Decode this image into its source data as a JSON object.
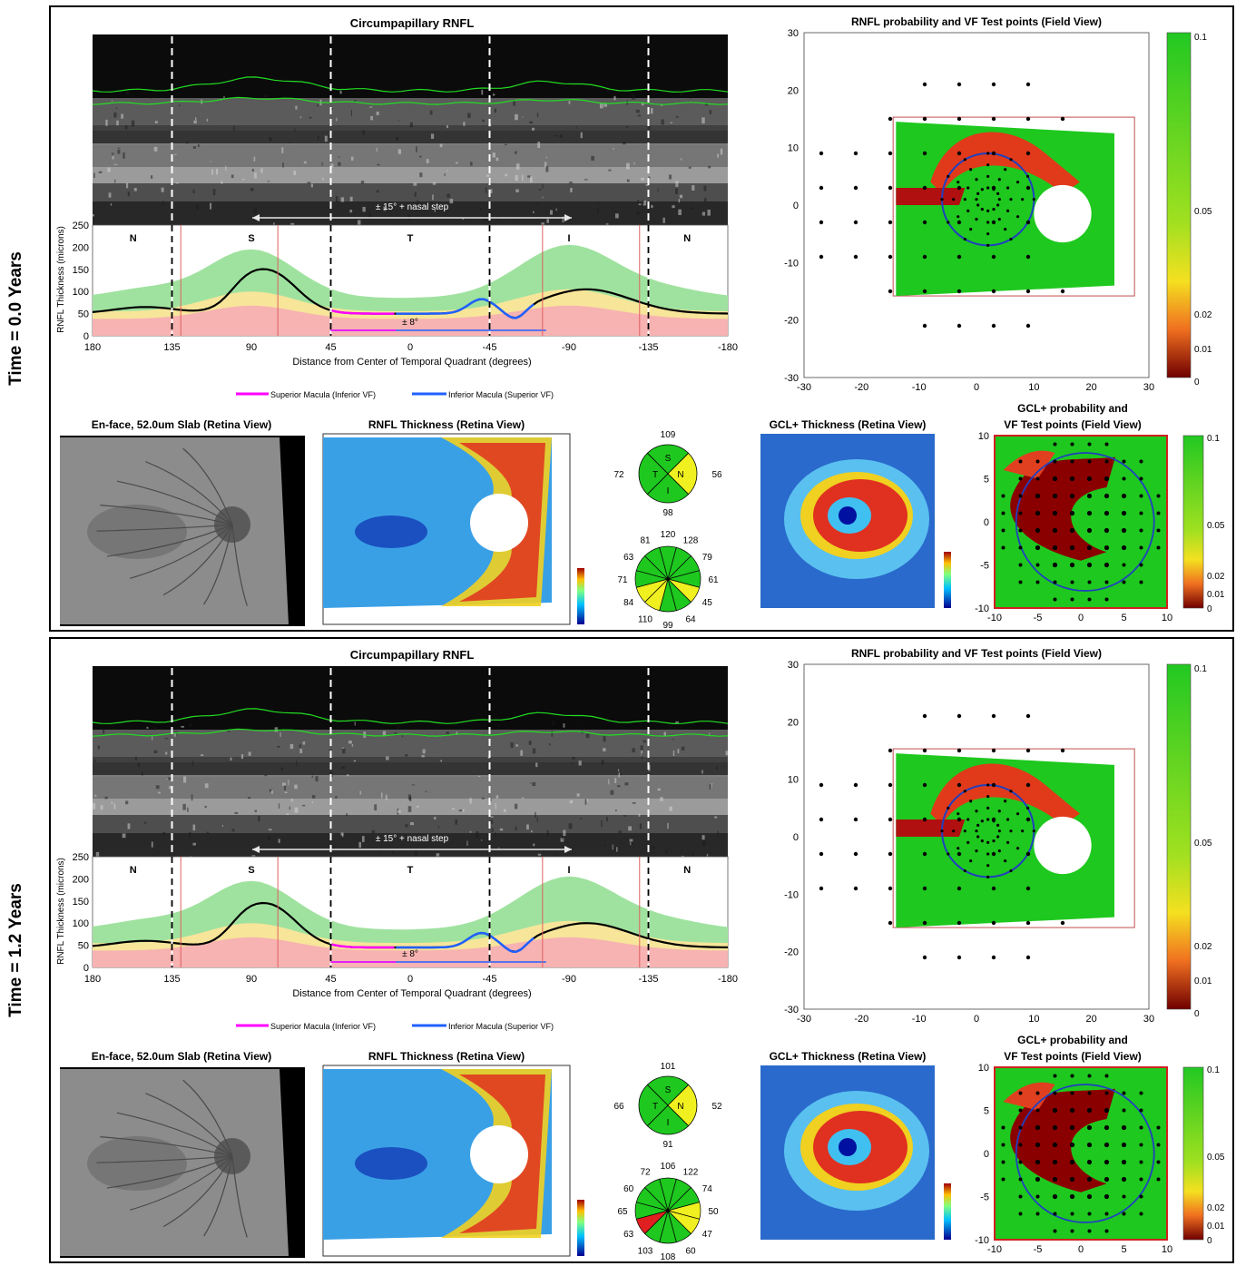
{
  "panels": [
    {
      "time_label": "Time = 0.0 Years",
      "rnfl_profile_title": "Circumpapillary RNFL",
      "nasal_step_label": "± 15° + nasal step",
      "macula_label": "± 8°",
      "quadrant_letters": [
        "N",
        "S",
        "T",
        "I",
        "N"
      ],
      "y_axis_label": "RNFL Thickness (microns)",
      "y_ticks": [
        "250",
        "200",
        "150",
        "100",
        "50",
        "0"
      ],
      "x_ticks": [
        "180",
        "135",
        "90",
        "45",
        "0",
        "-45",
        "-90",
        "-135",
        "-180"
      ],
      "x_axis_label": "Distance from Center of Temporal Quadrant (degrees)",
      "legend_superior": "Superior Macula (Inferior VF)",
      "legend_inferior": "Inferior Macula (Superior VF)",
      "rnfl_prob_title": "RNFL probability and VF Test points (Field View)",
      "field_y_ticks": [
        "30",
        "20",
        "10",
        "0",
        "-10",
        "-20",
        "-30"
      ],
      "field_x_ticks": [
        "-30",
        "-20",
        "-10",
        "0",
        "10",
        "20",
        "30"
      ],
      "colorbar_ticks": [
        "0.1",
        "0.05",
        "0.02",
        "0.01",
        "0"
      ],
      "enface_title": "En-face, 52.0um Slab (Retina View)",
      "rnfl_thickness_title": "RNFL Thickness (Retina View)",
      "quadrant_values": {
        "top": "109",
        "left": "72",
        "right": "56",
        "bottom": "98"
      },
      "quadrant_letters_pie": [
        "S",
        "T",
        "N",
        "I"
      ],
      "clock_values": [
        "120",
        "128",
        "79",
        "61",
        "45",
        "64",
        "99",
        "110",
        "84",
        "71",
        "63",
        "81"
      ],
      "gcl_thickness_title": "GCL+ Thickness (Retina View)",
      "gcl_prob_title_1": "GCL+ probability and",
      "gcl_prob_title_2": "VF Test points (Field View)",
      "gcl_y_ticks": [
        "10",
        "5",
        "0",
        "-5",
        "-10"
      ],
      "gcl_x_ticks": [
        "-10",
        "-5",
        "0",
        "5",
        "10"
      ],
      "gcl_colorbar_ticks": [
        "0.1",
        "0.05",
        "0.02",
        "0.01",
        "0"
      ]
    },
    {
      "time_label": "Time = 1.2 Years",
      "rnfl_profile_title": "Circumpapillary RNFL",
      "nasal_step_label": "± 15° + nasal step",
      "macula_label": "± 8°",
      "quadrant_letters": [
        "N",
        "S",
        "T",
        "I",
        "N"
      ],
      "y_axis_label": "RNFL Thickness (microns)",
      "y_ticks": [
        "250",
        "200",
        "150",
        "100",
        "50",
        "0"
      ],
      "x_ticks": [
        "180",
        "135",
        "90",
        "45",
        "0",
        "-45",
        "-90",
        "-135",
        "-180"
      ],
      "x_axis_label": "Distance from Center of Temporal Quadrant (degrees)",
      "legend_superior": "Superior Macula (Inferior VF)",
      "legend_inferior": "Inferior Macula (Superior VF)",
      "rnfl_prob_title": "RNFL probability and VF Test points (Field View)",
      "field_y_ticks": [
        "30",
        "20",
        "10",
        "0",
        "-10",
        "-20",
        "-30"
      ],
      "field_x_ticks": [
        "-30",
        "-20",
        "-10",
        "0",
        "10",
        "20",
        "30"
      ],
      "colorbar_ticks": [
        "0.1",
        "0.05",
        "0.02",
        "0.01",
        "0"
      ],
      "enface_title": "En-face, 52.0um Slab (Retina View)",
      "rnfl_thickness_title": "RNFL Thickness (Retina View)",
      "quadrant_values": {
        "top": "101",
        "left": "66",
        "right": "52",
        "bottom": "91"
      },
      "quadrant_letters_pie": [
        "S",
        "T",
        "N",
        "I"
      ],
      "clock_values": [
        "106",
        "122",
        "74",
        "50",
        "47",
        "60",
        "108",
        "103",
        "63",
        "65",
        "60",
        "72"
      ],
      "gcl_thickness_title": "GCL+ Thickness (Retina View)",
      "gcl_prob_title_1": "GCL+ probability and",
      "gcl_prob_title_2": "VF Test points (Field View)",
      "gcl_y_ticks": [
        "10",
        "5",
        "0",
        "-5",
        "-10"
      ],
      "gcl_x_ticks": [
        "-10",
        "-5",
        "0",
        "5",
        "10"
      ],
      "gcl_colorbar_ticks": [
        "0.1",
        "0.05",
        "0.02",
        "0.01",
        "0"
      ]
    }
  ],
  "colors": {
    "normal_green": "#1ec81e",
    "borderline_yellow": "#f0f020",
    "abnormal_red": "#e02020",
    "superior_macula": "#ff00ff",
    "inferior_macula": "#2060ff",
    "panel_border": "#000000"
  },
  "quadrant_status": [
    {
      "S": "green",
      "T": "green",
      "N": "yellow",
      "I": "green"
    },
    {
      "S": "green",
      "T": "green",
      "N": "yellow",
      "I": "green"
    }
  ],
  "clock_status": [
    [
      "green",
      "green",
      "green",
      "green",
      "yellow",
      "green",
      "green",
      "yellow",
      "yellow",
      "green",
      "green",
      "green"
    ],
    [
      "green",
      "green",
      "green",
      "yellow",
      "yellow",
      "green",
      "green",
      "green",
      "red",
      "green",
      "green",
      "green"
    ]
  ]
}
